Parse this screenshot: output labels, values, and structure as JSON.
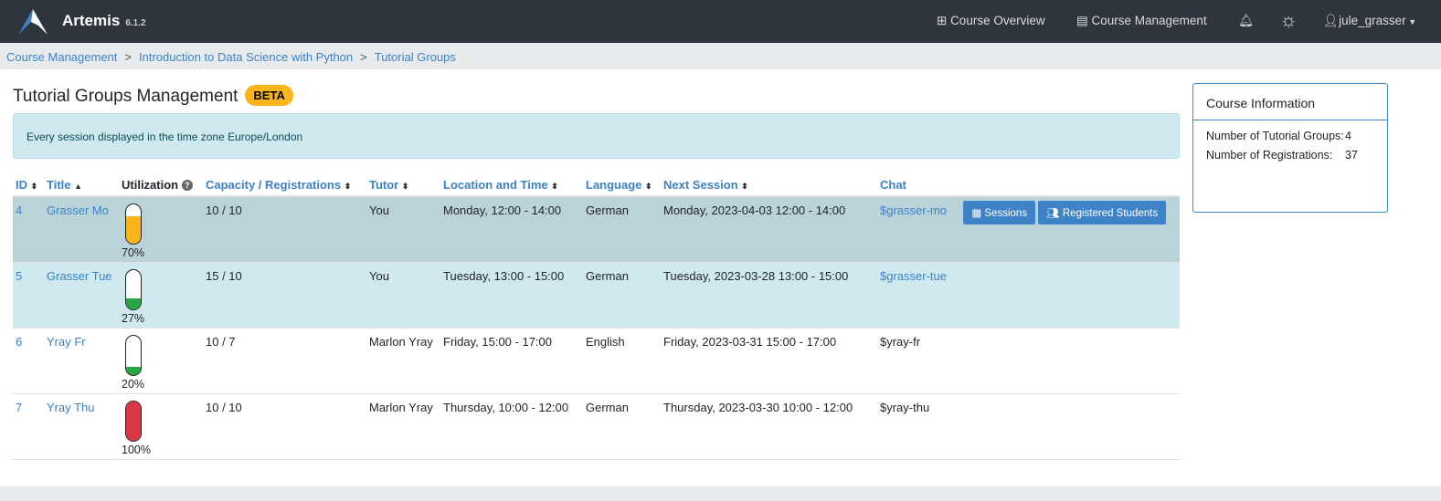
{
  "nav": {
    "brand": "Artemis",
    "version": "6.1.2",
    "course_overview": "Course Overview",
    "course_management": "Course Management",
    "user": "jule_grasser"
  },
  "breadcrumb": [
    "Course Management",
    "Introduction to Data Science with Python",
    "Tutorial Groups"
  ],
  "page": {
    "title": "Tutorial Groups Management",
    "badge": "BETA",
    "timezone_notice": "Every session displayed in the time zone Europe/London"
  },
  "table": {
    "headers": {
      "id": "ID",
      "title": "Title",
      "utilization": "Utilization",
      "capacity": "Capacity / Registrations",
      "tutor": "Tutor",
      "location": "Location and Time",
      "language": "Language",
      "next": "Next Session",
      "chat": "Chat"
    },
    "rows": [
      {
        "id": "4",
        "title": "Grasser Mo",
        "utilization": 70,
        "utilization_label": "70%",
        "bar_color": "#fbb51c",
        "capacity": "10 / 10",
        "tutor": "You",
        "location": "Monday, 12:00 - 14:00",
        "language": "German",
        "next": "Monday, 2023-04-03 12:00 - 14:00",
        "chat": "$grasser-mo",
        "chat_link": true
      },
      {
        "id": "5",
        "title": "Grasser Tue",
        "utilization": 27,
        "utilization_label": "27%",
        "bar_color": "#28a745",
        "capacity": "15 / 10",
        "tutor": "You",
        "location": "Tuesday, 13:00 - 15:00",
        "language": "German",
        "next": "Tuesday, 2023-03-28 13:00 - 15:00",
        "chat": "$grasser-tue",
        "chat_link": true
      },
      {
        "id": "6",
        "title": "Yray Fr",
        "utilization": 20,
        "utilization_label": "20%",
        "bar_color": "#28a745",
        "capacity": "10 / 7",
        "tutor": "Marlon Yray",
        "location": "Friday, 15:00 - 17:00",
        "language": "English",
        "next": "Friday, 2023-03-31 15:00 - 17:00",
        "chat": "$yray-fr",
        "chat_link": false
      },
      {
        "id": "7",
        "title": "Yray Thu",
        "utilization": 100,
        "utilization_label": "100%",
        "bar_color": "#dc3545",
        "capacity": "10 / 10",
        "tutor": "Marlon Yray",
        "location": "Thursday, 10:00 - 12:00",
        "language": "German",
        "next": "Thursday, 2023-03-30 10:00 - 12:00",
        "chat": "$yray-thu",
        "chat_link": false
      }
    ],
    "actions": {
      "sessions": "Sessions",
      "registered_students": "Registered Students"
    }
  },
  "course_info": {
    "title": "Course Information",
    "groups_label": "Number of Tutorial Groups:",
    "groups_value": "4",
    "registrations_label": "Number of Registrations:",
    "registrations_value": "37"
  }
}
